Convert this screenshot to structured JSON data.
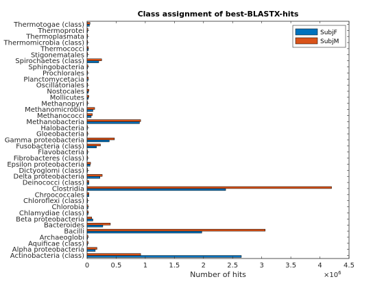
{
  "chart_data": {
    "type": "bar",
    "orientation": "horizontal",
    "title": "Class assignment of best-BLASTX-hits",
    "xlabel": "Number of hits",
    "ylabel": "",
    "x_multiplier_label": "×10",
    "x_multiplier_exponent": "6",
    "xlim": [
      0,
      4500000
    ],
    "x_ticks": [
      0,
      500000,
      1000000,
      1500000,
      2000000,
      2500000,
      3000000,
      3500000,
      4000000,
      4500000
    ],
    "x_tick_labels": [
      "0",
      "0.5",
      "1",
      "1.5",
      "2",
      "2.5",
      "3",
      "3.5",
      "4",
      "4.5"
    ],
    "grid": false,
    "legend_position": "top-right",
    "categories": [
      "Actinobacteria (class)",
      "Alpha proteobacteria",
      "Aquificae (class)",
      "Archaeoglobi",
      "Bacilli",
      "Bacteroides",
      "Beta proteobacteria",
      "Chlamydiae (class)",
      "Chlorobia",
      "Chloroflexi (class)",
      "Chroococcales",
      "Clostridia",
      "Deinococci (class)",
      "Delta proteobacteria",
      "Dictyoglomi (class)",
      "Epsilon proteobacteria",
      "Fibrobacteres (class)",
      "Flavobacteria",
      "Fusobacteria (class)",
      "Gamma proteobacteria",
      "Gloeobacteria",
      "Halobacteria",
      "Methanobacteria",
      "Methanococci",
      "Methanomicrobia",
      "Methanopyri",
      "Mollicutes",
      "Nostocales",
      "Oscillatoriales",
      "Planctomycetacia",
      "Prochlorales",
      "Sphingobacteria",
      "Spirochaetes (class)",
      "Stigonematales",
      "Thermococci",
      "Thermomicrobia (class)",
      "Thermoplasmata",
      "Thermoprotei",
      "Thermotogae (class)"
    ],
    "series": [
      {
        "name": "SubjF",
        "color": "#0072bd",
        "values": [
          2650000,
          140000,
          10000,
          10000,
          1970000,
          270000,
          100000,
          15000,
          15000,
          10000,
          30000,
          2380000,
          30000,
          220000,
          10000,
          50000,
          5000,
          10000,
          160000,
          380000,
          5000,
          5000,
          900000,
          70000,
          100000,
          5000,
          20000,
          20000,
          5000,
          15000,
          5000,
          10000,
          200000,
          5000,
          20000,
          5000,
          5000,
          10000,
          40000
        ]
      },
      {
        "name": "SubjM",
        "color": "#d95319",
        "values": [
          920000,
          170000,
          15000,
          15000,
          3060000,
          400000,
          80000,
          20000,
          15000,
          10000,
          30000,
          4200000,
          30000,
          260000,
          10000,
          60000,
          10000,
          10000,
          230000,
          470000,
          10000,
          10000,
          920000,
          90000,
          130000,
          10000,
          30000,
          30000,
          10000,
          20000,
          10000,
          15000,
          250000,
          10000,
          20000,
          10000,
          10000,
          15000,
          50000
        ]
      }
    ]
  }
}
